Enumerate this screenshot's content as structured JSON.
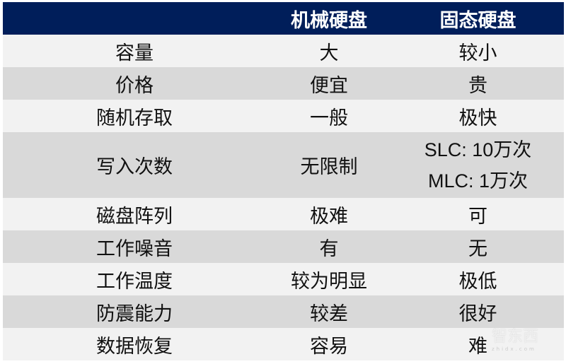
{
  "header": {
    "col1": "",
    "col2": "机械硬盘",
    "col3": "固态硬盘"
  },
  "rows": [
    {
      "label": "容量",
      "hdd": "大",
      "ssd": "较小"
    },
    {
      "label": "价格",
      "hdd": "便宜",
      "ssd": "贵"
    },
    {
      "label": "随机存取",
      "hdd": "一般",
      "ssd": "极快"
    },
    {
      "label": "写入次数",
      "hdd": "无限制",
      "ssd": "SLC:  10万次",
      "ssd2": "MLC:  1万次"
    },
    {
      "label": "磁盘阵列",
      "hdd": "极难",
      "ssd": "可"
    },
    {
      "label": "工作噪音",
      "hdd": "有",
      "ssd": "无"
    },
    {
      "label": "工作温度",
      "hdd": "较为明显",
      "ssd": "极低"
    },
    {
      "label": "防震能力",
      "hdd": "较差",
      "ssd": "很好"
    },
    {
      "label": "数据恢复",
      "hdd": "容易",
      "ssd": "难"
    }
  ],
  "watermark": {
    "logo": "智东西",
    "url": "zhidx.com"
  },
  "colors": {
    "header_bg": "#001e5a",
    "row_light": "#f2f2f2",
    "row_dark": "#d9d9d9"
  }
}
